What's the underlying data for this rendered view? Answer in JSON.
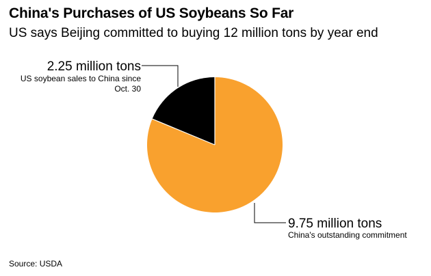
{
  "header": {
    "title": "China's Purchases of US Soybeans So Far",
    "subtitle": "US says Beijing committed to buying 12 million tons by year end"
  },
  "footer": {
    "source": "Source: USDA"
  },
  "chart_data": {
    "type": "pie",
    "unit": "million tons",
    "slices": [
      {
        "value_label": "2.25 million tons",
        "desc": [
          "US soybean sales to China since",
          "Oct. 30"
        ],
        "value": 2.25,
        "color": "#000000"
      },
      {
        "value_label": "9.75 million tons",
        "desc": [
          "China's outstanding commitment"
        ],
        "value": 9.75,
        "color": "#f9a12e"
      }
    ]
  }
}
